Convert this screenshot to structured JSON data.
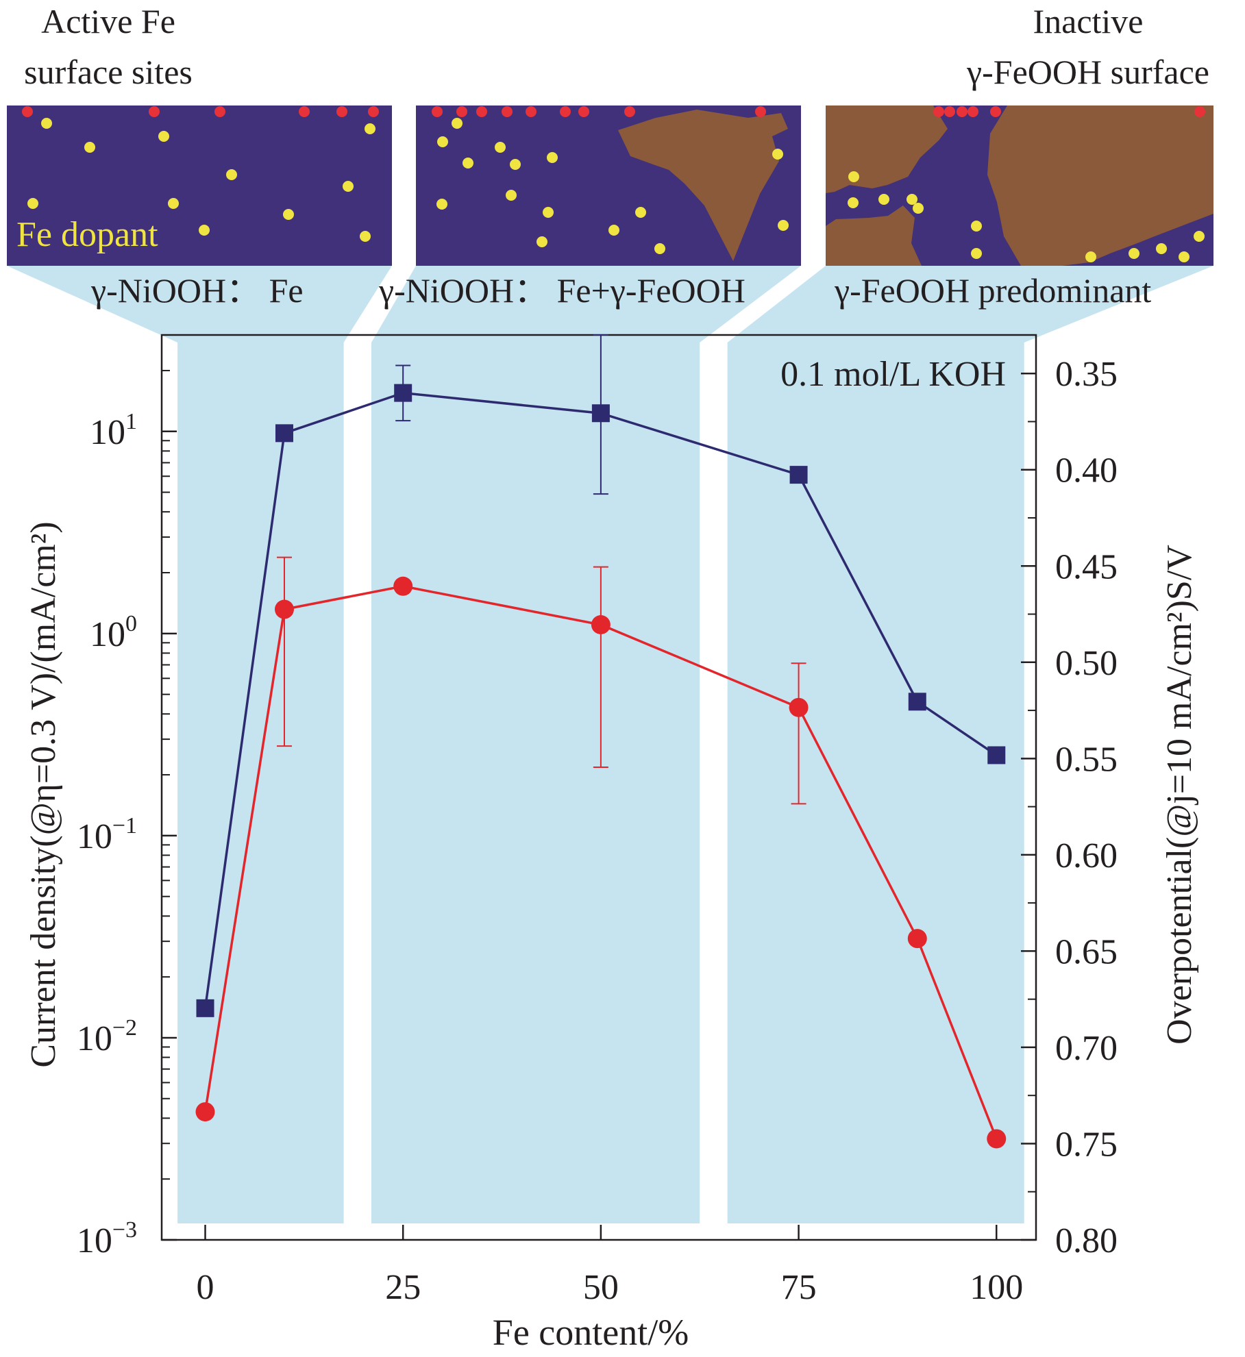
{
  "colors": {
    "band": "#c5e4f0",
    "panel_bg": "#41307a",
    "feooh": "#8a5a3a",
    "fe_dopant": "#f0e442",
    "surface_site": "#e8323a",
    "series_blue": "#2e2a6f",
    "series_red": "#e3262b"
  },
  "schematics": {
    "left_caption": [
      "Active Fe",
      "surface sites"
    ],
    "right_caption": [
      "Inactive",
      "γ-FeOOH surface"
    ],
    "dopant_label": "Fe dopant",
    "panels": [
      {
        "label": "γ-NiOOH： Fe"
      },
      {
        "label": "γ-NiOOH： Fe+γ-FeOOH"
      },
      {
        "label": "γ-FeOOH predominant"
      }
    ]
  },
  "chart_data": {
    "type": "line",
    "annotation": "0.1 mol/L KOH",
    "xlabel": "Fe content/%",
    "ylabel_left": "Current density(@η=0.3 V)/(mA/cm²)",
    "ylabel_right": "Overpotential(@j=10 mA/cm²)S/V",
    "x_ticks": [
      "0",
      "25",
      "50",
      "75",
      "100"
    ],
    "xlim": [
      -5.5,
      105
    ],
    "left_axis": {
      "scale": "log",
      "ylim": [
        0.001,
        30
      ],
      "ticks": [
        {
          "base": "10",
          "exp": "1",
          "value": 10
        },
        {
          "base": "10",
          "exp": "0",
          "value": 1
        },
        {
          "base": "10",
          "exp": "−1",
          "value": 0.1
        },
        {
          "base": "10",
          "exp": "−2",
          "value": 0.01
        },
        {
          "base": "10",
          "exp": "−3",
          "value": 0.001
        }
      ]
    },
    "right_axis": {
      "scale": "linear",
      "ylim": [
        0.8,
        0.33
      ],
      "ticks": [
        "0.35",
        "0.40",
        "0.45",
        "0.50",
        "0.55",
        "0.60",
        "0.65",
        "0.70",
        "0.75",
        "0.80"
      ]
    },
    "bands": [
      {
        "x_from": -3.5,
        "x_to": 17.5
      },
      {
        "x_from": 21,
        "x_to": 62.5
      },
      {
        "x_from": 66,
        "x_to": 103.5
      }
    ],
    "series": [
      {
        "name": "Current density",
        "axis": "left",
        "marker": "square",
        "x": [
          0,
          10,
          25,
          50,
          75,
          90,
          100
        ],
        "values": [
          0.014,
          9.8,
          15.5,
          12.3,
          6.1,
          0.46,
          0.25
        ],
        "errors": [
          null,
          null,
          [
            11.3,
            21.2
          ],
          [
            4.9,
            30
          ],
          null,
          null,
          null
        ]
      },
      {
        "name": "Overpotential",
        "axis": "right",
        "marker": "circle",
        "x": [
          0,
          10,
          25,
          50,
          75,
          90,
          100
        ],
        "values": [
          0.7335,
          0.4725,
          0.4605,
          0.4805,
          0.5235,
          0.6435,
          0.7475
        ],
        "errors": [
          null,
          [
            0.4455,
            0.5435
          ],
          null,
          [
            0.4505,
            0.5545
          ],
          [
            0.5005,
            0.5735
          ],
          null,
          null
        ]
      }
    ]
  }
}
